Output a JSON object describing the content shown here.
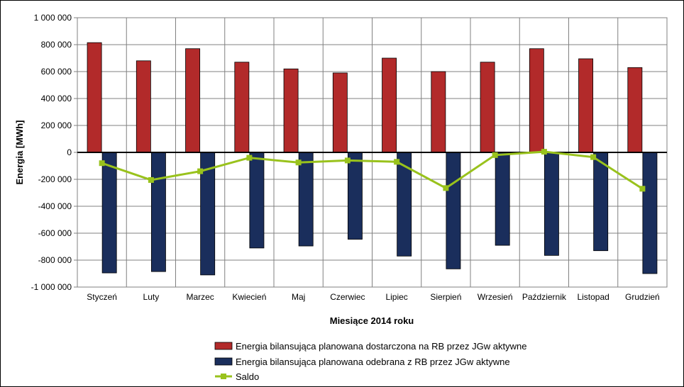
{
  "chart_data": {
    "type": "bar",
    "xlabel": "Miesiące 2014 roku",
    "ylabel": "Energia [MWh]",
    "ylim": [
      -1000000,
      1000000
    ],
    "ytick_step": 200000,
    "ytick_labels": [
      "1 000 000",
      "800 000",
      "600 000",
      "400 000",
      "200 000",
      "0",
      "-200 000",
      "-400 000",
      "-600 000",
      "-800 000",
      "-1 000 000"
    ],
    "grid": true,
    "legend_position": "bottom",
    "categories": [
      "Styczeń",
      "Luty",
      "Marzec",
      "Kwiecień",
      "Maj",
      "Czerwiec",
      "Lipiec",
      "Sierpień",
      "Wrzesień",
      "Październik",
      "Listopad",
      "Grudzień"
    ],
    "series": [
      {
        "name": "Energia bilansująca planowana dostarczona na RB przez JGw aktywne",
        "kind": "bar",
        "color": "#b22a2a",
        "values": [
          815000,
          680000,
          770000,
          670000,
          620000,
          590000,
          700000,
          600000,
          670000,
          770000,
          695000,
          630000
        ]
      },
      {
        "name": "Energia bilansująca planowana odebrana z RB przez JGw aktywne",
        "kind": "bar",
        "color": "#1a2e5c",
        "values": [
          -895000,
          -885000,
          -910000,
          -710000,
          -695000,
          -645000,
          -770000,
          -865000,
          -690000,
          -765000,
          -730000,
          -900000
        ]
      },
      {
        "name": "Saldo",
        "kind": "line",
        "color": "#99c21c",
        "values": [
          -80000,
          -205000,
          -140000,
          -40000,
          -75000,
          -60000,
          -70000,
          -265000,
          -20000,
          5000,
          -35000,
          -270000
        ]
      }
    ]
  }
}
